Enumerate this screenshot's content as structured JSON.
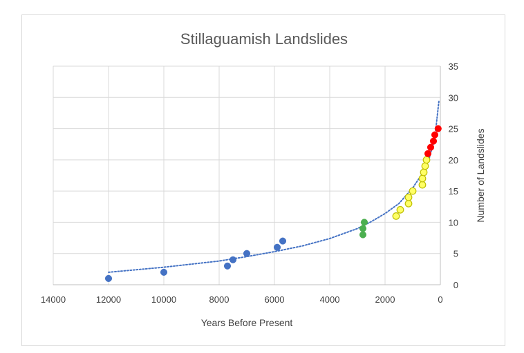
{
  "chart_data": {
    "type": "scatter",
    "title": "Stillaguamish Landslides",
    "xlabel": "Years Before  Present",
    "ylabel": "Number  of Landslides",
    "x_reversed": true,
    "xlim": [
      0,
      14000
    ],
    "ylim": [
      0,
      35
    ],
    "x_ticks": [
      14000,
      12000,
      10000,
      8000,
      6000,
      4000,
      2000,
      0
    ],
    "y_ticks": [
      0,
      5,
      10,
      15,
      20,
      25,
      30,
      35
    ],
    "y_axis_side": "right",
    "gridlines": true,
    "series": [
      {
        "name": "blue",
        "color": "#4472c4",
        "points": [
          [
            12000,
            1
          ],
          [
            10000,
            2
          ],
          [
            7700,
            3
          ],
          [
            7500,
            4
          ],
          [
            7000,
            5
          ],
          [
            5900,
            6
          ],
          [
            5700,
            7
          ]
        ]
      },
      {
        "name": "green",
        "color": "#4caf50",
        "points": [
          [
            2800,
            8
          ],
          [
            2800,
            9
          ],
          [
            2750,
            10
          ]
        ]
      },
      {
        "name": "yellow",
        "color": "#ffff66",
        "stroke": "#bfbf00",
        "points": [
          [
            1600,
            11
          ],
          [
            1450,
            12
          ],
          [
            1150,
            13
          ],
          [
            1150,
            14
          ],
          [
            1000,
            15
          ],
          [
            650,
            16
          ],
          [
            650,
            17
          ],
          [
            600,
            18
          ],
          [
            550,
            19
          ],
          [
            500,
            20
          ]
        ]
      },
      {
        "name": "red",
        "color": "#ff0000",
        "points": [
          [
            450,
            21
          ],
          [
            350,
            22
          ],
          [
            250,
            23
          ],
          [
            200,
            24
          ],
          [
            80,
            25
          ]
        ]
      }
    ],
    "trendline": {
      "type": "power",
      "style": "dotted",
      "color": "#4472c4",
      "points": [
        [
          12000,
          2.0
        ],
        [
          10000,
          2.8
        ],
        [
          8000,
          3.8
        ],
        [
          7000,
          4.5
        ],
        [
          6000,
          5.3
        ],
        [
          5000,
          6.2
        ],
        [
          4000,
          7.4
        ],
        [
          3000,
          9.0
        ],
        [
          2500,
          10.1
        ],
        [
          2000,
          11.4
        ],
        [
          1500,
          13.0
        ],
        [
          1000,
          15.5
        ],
        [
          700,
          17.5
        ],
        [
          400,
          20.3
        ],
        [
          200,
          23.5
        ],
        [
          50,
          29.5
        ]
      ]
    }
  }
}
